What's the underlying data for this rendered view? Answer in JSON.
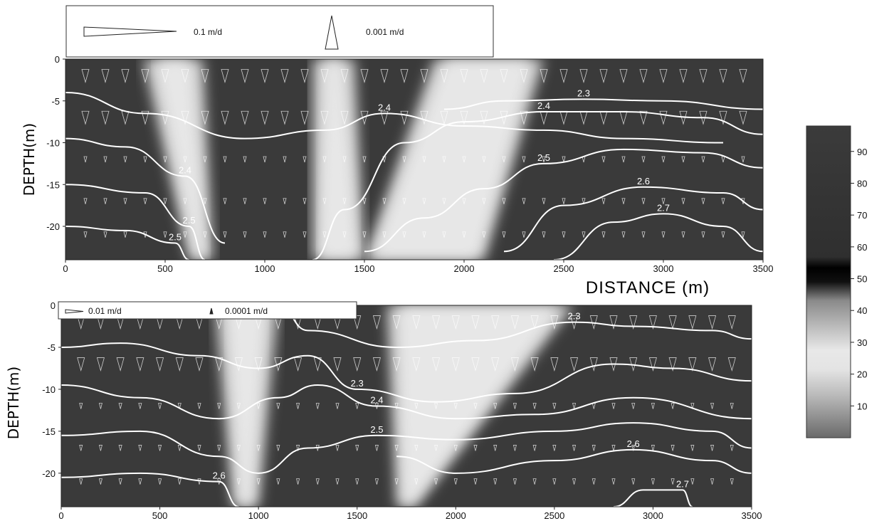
{
  "colors": {
    "background": "#ffffff",
    "field_dark": "#3a3a3a",
    "field_light": "#e6e6e6",
    "contour": "#ffffff",
    "arrow": "#ffffff"
  },
  "chart_data": [
    {
      "type": "heatmap",
      "panel": "top",
      "xlabel": "DISTANCE (m)",
      "ylabel": "DEPTH(m)",
      "xlim": [
        0,
        3500
      ],
      "ylim": [
        -24,
        0
      ],
      "xticks": [
        "0",
        "500",
        "1000",
        "1500",
        "2000",
        "2500",
        "3000",
        "3500"
      ],
      "yticks": [
        "0",
        "-5",
        "-10",
        "-15",
        "-20"
      ],
      "legend": {
        "placement": "top-left",
        "entries": [
          "0.1 m/d",
          "0.001 m/d"
        ]
      },
      "grayscale_field": {
        "bright_channels": [
          {
            "x_top": [
              390,
              690
            ],
            "x_bottom": [
              620,
              740
            ]
          },
          {
            "x_top": [
              1240,
              1450
            ],
            "x_bottom": [
              1240,
              1500
            ]
          },
          {
            "x_top": [
              1850,
              2400
            ],
            "x_bottom": [
              1500,
              2100
            ]
          }
        ]
      },
      "contours": [
        {
          "label": "2.3",
          "points": [
            [
              1900,
              -6
            ],
            [
              2200,
              -5
            ],
            [
              2600,
              -4.8
            ],
            [
              3000,
              -5
            ],
            [
              3500,
              -6
            ]
          ]
        },
        {
          "label": "2.4",
          "points": [
            [
              0,
              -4
            ],
            [
              400,
              -6.5
            ],
            [
              900,
              -9.5
            ],
            [
              1300,
              -8.5
            ],
            [
              1600,
              -6.5
            ],
            [
              2000,
              -8
            ],
            [
              2400,
              -8.5
            ],
            [
              2800,
              -9.5
            ],
            [
              3300,
              -10
            ]
          ]
        },
        {
          "label": "2.4",
          "points": [
            [
              0,
              -9.5
            ],
            [
              300,
              -10.5
            ],
            [
              600,
              -14
            ],
            [
              800,
              -22
            ]
          ]
        },
        {
          "label": "2.4",
          "points": [
            [
              1240,
              -24
            ],
            [
              1400,
              -18
            ],
            [
              1700,
              -10
            ],
            [
              2000,
              -7.5
            ],
            [
              2400,
              -6.3
            ],
            [
              2800,
              -6.3
            ],
            [
              3200,
              -7
            ],
            [
              3500,
              -9
            ]
          ]
        },
        {
          "label": "2.5",
          "points": [
            [
              1500,
              -23
            ],
            [
              1800,
              -19
            ],
            [
              2100,
              -15.5
            ],
            [
              2400,
              -12.5
            ],
            [
              2800,
              -10.8
            ],
            [
              3200,
              -11.2
            ],
            [
              3500,
              -13
            ]
          ]
        },
        {
          "label": "2.5",
          "points": [
            [
              0,
              -15
            ],
            [
              400,
              -16
            ],
            [
              620,
              -20
            ],
            [
              700,
              -24
            ]
          ]
        },
        {
          "label": "2.6",
          "points": [
            [
              2200,
              -23
            ],
            [
              2500,
              -17.5
            ],
            [
              2900,
              -15.3
            ],
            [
              3300,
              -16
            ],
            [
              3500,
              -18
            ]
          ]
        },
        {
          "label": "2.7",
          "points": [
            [
              2450,
              -24
            ],
            [
              2750,
              -19.5
            ],
            [
              3000,
              -18.5
            ],
            [
              3300,
              -20
            ],
            [
              3500,
              -23
            ]
          ]
        },
        {
          "label": "2.5",
          "points": [
            [
              0,
              -20
            ],
            [
              300,
              -20.5
            ],
            [
              550,
              -22
            ],
            [
              620,
              -24
            ]
          ]
        }
      ]
    },
    {
      "type": "heatmap",
      "panel": "bottom",
      "xlabel": "",
      "ylabel": "DEPTH(m)",
      "xlim": [
        0,
        3500
      ],
      "ylim": [
        -24,
        0
      ],
      "xticks": [
        "0",
        "500",
        "1000",
        "1500",
        "2000",
        "2500",
        "3000",
        "3500"
      ],
      "yticks": [
        "0",
        "-5",
        "-10",
        "-15",
        "-20"
      ],
      "legend": {
        "placement": "top-left",
        "entries": [
          "0.01 m/d",
          "0.0001 m/d"
        ]
      },
      "grayscale_field": {
        "bright_channels": [
          {
            "x_top": [
              780,
              1100
            ],
            "x_bottom": [
              870,
              1000
            ]
          },
          {
            "x_top": [
              1650,
              2600
            ],
            "x_bottom": [
              1700,
              1800
            ]
          }
        ]
      },
      "contours": [
        {
          "label": "2.3",
          "points": [
            [
              1100,
              0
            ],
            [
              1250,
              -3
            ],
            [
              1700,
              -5
            ],
            [
              2100,
              -4.2
            ],
            [
              2600,
              -2
            ],
            [
              2900,
              -2.5
            ],
            [
              3300,
              -3
            ],
            [
              3500,
              -4
            ]
          ]
        },
        {
          "label": "2.3",
          "points": [
            [
              0,
              -5
            ],
            [
              300,
              -4.5
            ],
            [
              700,
              -6
            ],
            [
              1000,
              -7.5
            ],
            [
              1250,
              -6
            ],
            [
              1500,
              -10
            ],
            [
              1900,
              -11.5
            ],
            [
              2300,
              -10.5
            ],
            [
              2800,
              -7
            ],
            [
              3100,
              -7.5
            ],
            [
              3500,
              -9
            ]
          ]
        },
        {
          "label": "2.4",
          "points": [
            [
              0,
              -9.5
            ],
            [
              400,
              -11
            ],
            [
              800,
              -13.5
            ],
            [
              1100,
              -11
            ],
            [
              1300,
              -9.5
            ],
            [
              1600,
              -12
            ],
            [
              2000,
              -13.5
            ],
            [
              2400,
              -13
            ],
            [
              2900,
              -11
            ],
            [
              3500,
              -13.5
            ]
          ]
        },
        {
          "label": "2.5",
          "points": [
            [
              0,
              -15.5
            ],
            [
              400,
              -15
            ],
            [
              800,
              -18
            ],
            [
              1000,
              -20
            ],
            [
              1250,
              -17
            ],
            [
              1600,
              -15.5
            ],
            [
              2000,
              -16
            ],
            [
              2500,
              -15
            ],
            [
              2900,
              -14
            ],
            [
              3300,
              -15
            ],
            [
              3500,
              -17
            ]
          ]
        },
        {
          "label": "2.6",
          "points": [
            [
              0,
              -20.5
            ],
            [
              400,
              -20
            ],
            [
              800,
              -21
            ],
            [
              900,
              -24
            ]
          ]
        },
        {
          "label": "2.6",
          "points": [
            [
              1700,
              -18
            ],
            [
              2000,
              -20
            ],
            [
              2500,
              -18.5
            ],
            [
              2900,
              -17.2
            ],
            [
              3300,
              -18.5
            ],
            [
              3500,
              -20
            ]
          ]
        },
        {
          "label": "2.7",
          "points": [
            [
              2800,
              -24
            ],
            [
              2950,
              -22
            ],
            [
              3150,
              -22
            ],
            [
              3200,
              -24
            ]
          ]
        }
      ]
    },
    {
      "type": "heatmap",
      "panel": "colorbar",
      "ticks": [
        "90",
        "80",
        "70",
        "60",
        "50",
        "40",
        "30",
        "20",
        "10"
      ],
      "values": [
        90,
        80,
        70,
        60,
        50,
        40,
        30,
        20,
        10
      ],
      "range": [
        0,
        98
      ]
    }
  ]
}
